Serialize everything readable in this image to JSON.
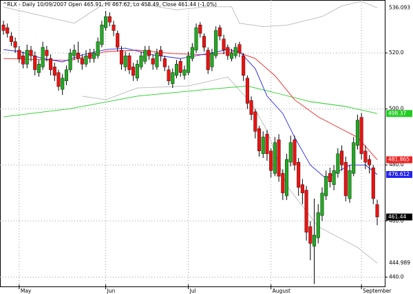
{
  "chart_data": {
    "type": "candlestick",
    "title": "^RLX - Daily 10/09/2007 Open 465.91, Hi 467.62, Lo 458.49, Close 461.44 (-1.0%)",
    "categories": [
      null,
      null,
      null,
      null,
      "May",
      null,
      null,
      null,
      null,
      null,
      null,
      null,
      null,
      null,
      null,
      null,
      null,
      null,
      null,
      null,
      null,
      null,
      null,
      null,
      null,
      null,
      "Jun",
      null,
      null,
      null,
      null,
      null,
      null,
      null,
      null,
      null,
      null,
      null,
      null,
      null,
      null,
      null,
      null,
      null,
      null,
      null,
      null,
      "Jul",
      null,
      null,
      null,
      null,
      null,
      null,
      null,
      null,
      null,
      null,
      null,
      null,
      null,
      null,
      null,
      null,
      null,
      null,
      null,
      null,
      "August",
      null,
      null,
      null,
      null,
      null,
      null,
      null,
      null,
      null,
      null,
      null,
      null,
      null,
      null,
      null,
      null,
      null,
      null,
      null,
      null,
      null,
      null,
      "September",
      null,
      null,
      null,
      null
    ],
    "open": [
      530,
      529,
      526,
      524,
      521,
      519,
      516,
      521,
      519,
      513,
      515,
      521,
      518,
      515,
      513,
      507,
      510,
      514,
      519,
      520,
      518,
      516,
      520,
      518,
      519,
      523,
      529,
      533,
      530,
      527,
      521,
      515,
      519,
      515,
      511,
      515,
      517,
      521,
      518,
      515,
      521,
      518,
      514,
      509,
      512,
      517,
      512,
      513,
      518,
      521,
      530,
      526,
      521,
      515,
      519,
      529,
      525,
      522,
      518,
      519,
      523,
      519,
      511,
      503,
      499,
      493,
      484,
      491,
      485,
      477,
      489,
      477,
      469,
      481,
      489,
      481,
      473,
      471,
      458,
      451,
      454,
      462,
      469,
      477,
      473,
      477,
      485,
      481,
      468,
      477,
      487,
      497,
      485,
      482,
      479,
      465.91
    ],
    "high": [
      531.5,
      530.5,
      527.5,
      525.5,
      522.5,
      520.5,
      523,
      522.5,
      520.5,
      517.5,
      524,
      522.5,
      519.5,
      516.5,
      514,
      512.5,
      515.5,
      521.5,
      523,
      524,
      519.5,
      521,
      521.5,
      521.5,
      525.5,
      531.5,
      535,
      534.5,
      531.5,
      528,
      522.5,
      520.5,
      520,
      516.5,
      517.5,
      520.5,
      522.5,
      522.5,
      519.5,
      521.5,
      522.5,
      519,
      515.5,
      514.5,
      517.5,
      518,
      515.5,
      520.5,
      523.5,
      530.5,
      531,
      527,
      522,
      521.5,
      529.5,
      530,
      526.5,
      523,
      521.5,
      523.5,
      524,
      520,
      512,
      504.5,
      500,
      494,
      492,
      492.5,
      486,
      490,
      491,
      478.5,
      484,
      490.5,
      490.5,
      482.5,
      475,
      472.5,
      460,
      468,
      466,
      472,
      478,
      479,
      480,
      486,
      487,
      483,
      480,
      490,
      498,
      498.5,
      487,
      483.5,
      480,
      467.62
    ],
    "low": [
      526.5,
      525.5,
      522.5,
      520,
      516.5,
      514.5,
      514.5,
      517,
      512,
      511.5,
      514,
      517,
      512,
      510,
      506.5,
      505,
      508.5,
      513,
      517.5,
      516.5,
      514,
      515,
      516.5,
      516.5,
      518,
      522,
      528,
      529.5,
      526,
      520.5,
      514,
      513.5,
      512.5,
      510,
      510,
      514,
      516,
      517.5,
      514,
      514,
      517,
      513.5,
      508.5,
      507.5,
      511,
      511.5,
      510.5,
      512,
      517,
      520,
      525.5,
      520.5,
      512.5,
      513.5,
      518,
      524.5,
      519.5,
      517.5,
      517,
      518,
      518.5,
      510,
      500,
      496,
      489.5,
      483,
      482.5,
      481.5,
      475.5,
      476,
      474,
      467.5,
      467.5,
      479.5,
      478,
      469,
      466,
      453,
      446,
      437.5,
      452,
      460,
      467.5,
      472,
      471,
      475.5,
      478,
      467,
      466.5,
      476,
      485.5,
      482,
      478.5,
      477,
      466,
      458.49
    ],
    "close": [
      528,
      527,
      524,
      522,
      518,
      516,
      521,
      519,
      514,
      516,
      522,
      519,
      514,
      512,
      508,
      511,
      514,
      520,
      521,
      518,
      516,
      519,
      518,
      520,
      524,
      530,
      533,
      531,
      528,
      522,
      516,
      519,
      514,
      512,
      516,
      519,
      521,
      519,
      516,
      520,
      519,
      515,
      510,
      513,
      516,
      513,
      514,
      519,
      522,
      529,
      527,
      522,
      514,
      520,
      528,
      526,
      521,
      519,
      520,
      522,
      520,
      512,
      502,
      498,
      492,
      485,
      490,
      484,
      478,
      488,
      476,
      470,
      482,
      488,
      480,
      472,
      470,
      456,
      452,
      455,
      463,
      470,
      476,
      474,
      478,
      484,
      480,
      469,
      478,
      488,
      496,
      484,
      481,
      480,
      468,
      461.44
    ],
    "up_color": "#22aa22",
    "down_color": "#ee1111",
    "lines": [
      {
        "color": "#b8b8b8",
        "end_label": "plain",
        "x": [
          0,
          18,
          26,
          34,
          44,
          52,
          58,
          60,
          66,
          72,
          81,
          86,
          91,
          95
        ],
        "values": [
          536.4,
          530.6,
          538,
          537.7,
          535.4,
          536.5,
          536.5,
          530.6,
          529.4,
          529.9,
          533,
          536.8,
          538.4,
          536.093
        ]
      },
      {
        "color": "#b8b8b8",
        "end_label": "plain",
        "x": [
          20,
          26,
          34,
          47,
          57,
          63,
          67,
          72,
          76,
          80,
          85,
          90,
          95
        ],
        "values": [
          504.6,
          503.3,
          507.5,
          508.2,
          511.4,
          502.1,
          492.3,
          472.7,
          465.3,
          458,
          454.3,
          450.6,
          444.989
        ]
      },
      {
        "color": "#22cc22",
        "end_label": "box",
        "x": [
          0,
          17,
          34,
          52,
          62,
          69,
          78,
          87,
          95
        ],
        "values": [
          497.2,
          500.1,
          504.6,
          507,
          508.2,
          505.8,
          502.6,
          500.9,
          498.37
        ]
      },
      {
        "color": "#ee2222",
        "end_label": "box",
        "x": [
          0,
          17,
          26,
          34,
          43,
          52,
          59,
          64,
          69,
          74,
          80,
          85,
          90,
          95
        ],
        "values": [
          518,
          517.3,
          520.5,
          521,
          519.8,
          519.3,
          520.5,
          518,
          511.9,
          503.3,
          497.2,
          493.5,
          489.9,
          481.865
        ]
      },
      {
        "color": "#2222ee",
        "end_label": "box",
        "x": [
          0,
          4,
          10,
          15,
          20,
          26,
          31,
          38,
          45,
          52,
          57,
          60,
          64,
          67,
          71,
          74,
          78,
          82,
          85,
          88,
          92,
          95
        ],
        "values": [
          521.2,
          520.5,
          518,
          516.8,
          519.3,
          521.2,
          521.7,
          519.3,
          518,
          519.8,
          521.2,
          520.5,
          514.4,
          504.6,
          498.4,
          489.9,
          480,
          475.2,
          477.6,
          480,
          480,
          476.612
        ]
      }
    ],
    "ylim": [
      436.4,
      538.9
    ],
    "yticks": [
      {
        "value": 440,
        "label": "440.0"
      },
      {
        "value": 460,
        "label": "460.0"
      },
      {
        "value": 480,
        "label": "480.0"
      },
      {
        "value": 500,
        "label": "500.0"
      },
      {
        "value": 520,
        "label": "520.0"
      }
    ],
    "grid": true
  }
}
